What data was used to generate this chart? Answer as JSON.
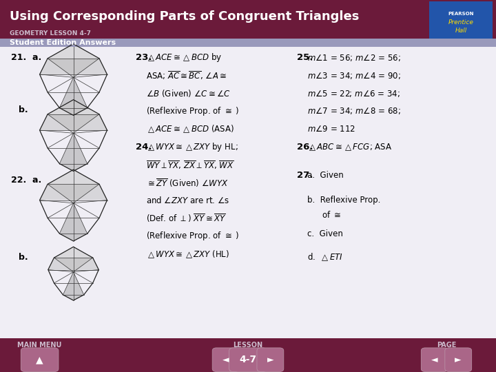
{
  "title": "Using Corresponding Parts of Congruent Triangles",
  "subtitle": "GEOMETRY LESSON 4-7",
  "section_label": "Student Edition Answers",
  "bg_color": "#f0eef5",
  "header_bg": "#6b1a3a",
  "header_text_color": "#ffffff",
  "section_bar_color": "#9999bb",
  "footer_bg": "#6b1a3a",
  "footer_text_color": "#ccbbcc",
  "footer_labels": [
    "MAIN MENU",
    "LESSON",
    "PAGE"
  ],
  "footer_lesson": "4-7",
  "logo_bg": "#2255aa",
  "btn_color": "#aa6688"
}
